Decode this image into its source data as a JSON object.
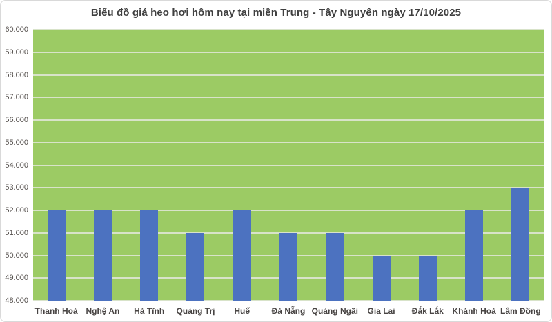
{
  "chart_data": {
    "type": "bar",
    "title": "Biểu đồ giá heo hơi hôm nay tại miền Trung - Tây Nguyên ngày 17/10/2025",
    "categories": [
      "Thanh Hoá",
      "Nghệ An",
      "Hà Tĩnh",
      "Quảng Trị",
      "Huế",
      "Đà Nẵng",
      "Quảng Ngãi",
      "Gia Lai",
      "Đắk Lắk",
      "Khánh Hoà",
      "Lâm Đồng"
    ],
    "values": [
      52000,
      52000,
      52000,
      51000,
      52000,
      51000,
      51000,
      50000,
      50000,
      52000,
      53000
    ],
    "xlabel": "",
    "ylabel": "",
    "ylim": [
      48000,
      60000
    ],
    "y_tick_step": 1000,
    "y_tick_labels_top_to_bottom": [
      "60.000",
      "59.000",
      "58.000",
      "57.000",
      "56.000",
      "55.000",
      "54.000",
      "53.000",
      "52.000",
      "51.000",
      "50.000",
      "49.000",
      "48.000"
    ],
    "grid": "horizontal",
    "legend": "none",
    "colors": {
      "bar": "#4c72c0",
      "plot_background": "#9ccb64",
      "gridline": "#d8e3c9",
      "title_text": "#3f3f3f",
      "tick_text": "#55504d",
      "frame_border": "#d9d9d9",
      "page_background": "#ffffff"
    }
  }
}
